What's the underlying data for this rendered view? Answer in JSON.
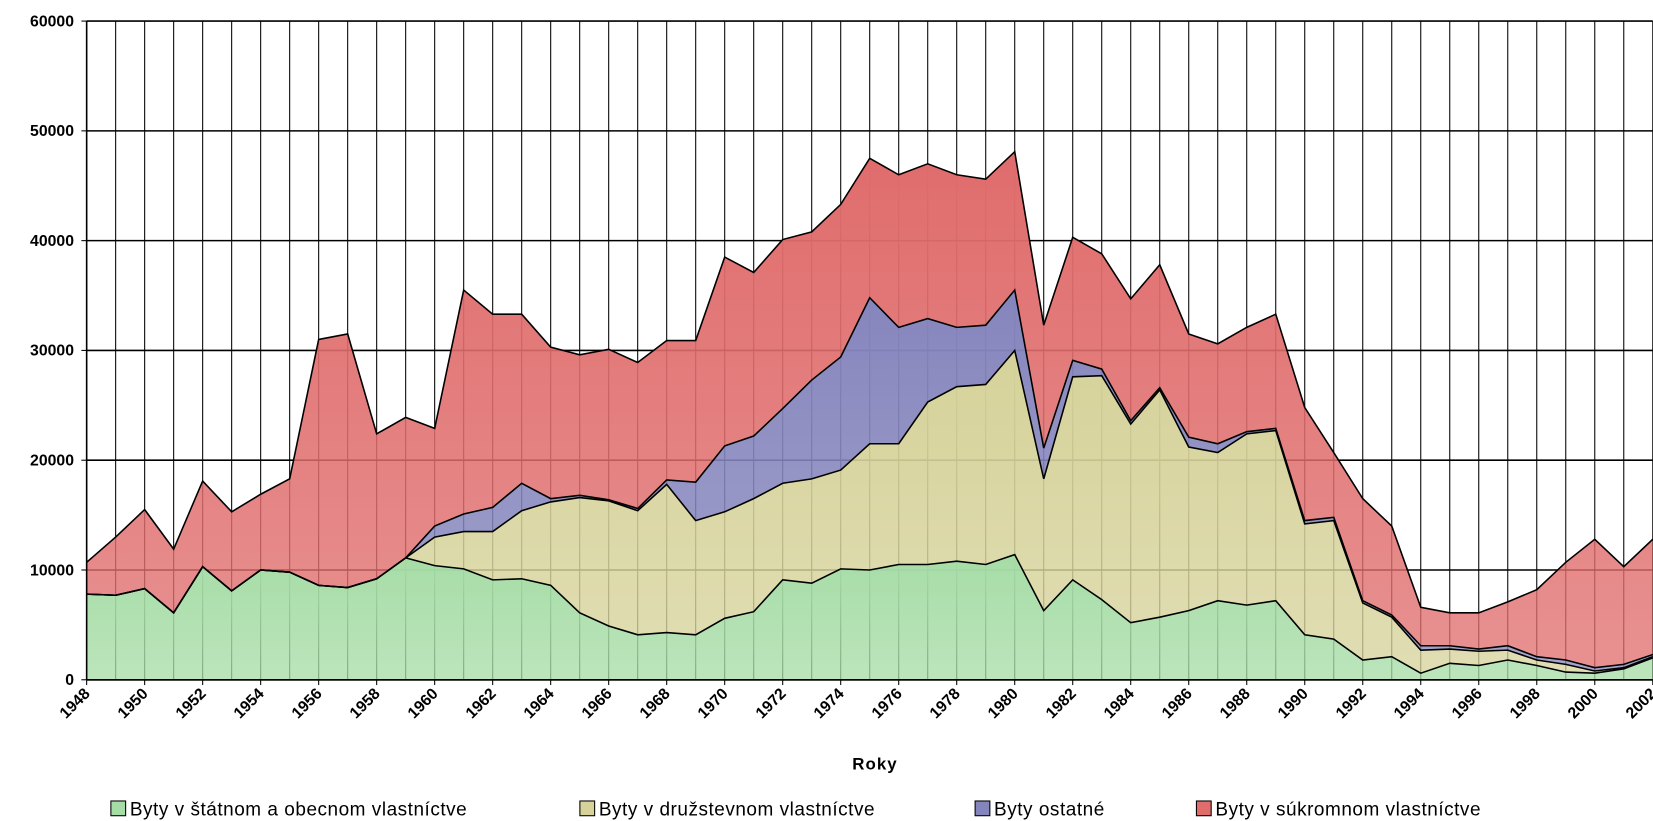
{
  "chart_data": {
    "type": "stacked_area",
    "x_label": "Roky",
    "x": [
      1948,
      1949,
      1950,
      1951,
      1952,
      1953,
      1954,
      1955,
      1956,
      1957,
      1958,
      1959,
      1960,
      1961,
      1962,
      1963,
      1964,
      1965,
      1966,
      1967,
      1968,
      1969,
      1970,
      1971,
      1972,
      1973,
      1974,
      1975,
      1976,
      1977,
      1978,
      1979,
      1980,
      1981,
      1982,
      1983,
      1984,
      1985,
      1986,
      1987,
      1988,
      1989,
      1990,
      1991,
      1992,
      1993,
      1994,
      1995,
      1996,
      1997,
      1998,
      1999,
      2000,
      2001,
      2002
    ],
    "xlim": [
      1948,
      2002
    ],
    "xticks": [
      1948,
      1950,
      1952,
      1954,
      1956,
      1958,
      1960,
      1962,
      1964,
      1966,
      1968,
      1970,
      1972,
      1974,
      1976,
      1978,
      1980,
      1982,
      1984,
      1986,
      1988,
      1990,
      1992,
      1994,
      1996,
      1998,
      2000,
      2002
    ],
    "ylim": [
      0,
      60000
    ],
    "yticks": [
      0,
      10000,
      20000,
      30000,
      40000,
      50000,
      60000
    ],
    "grid": true,
    "legend": "bottom",
    "series": [
      {
        "name": "Byty v štátnom a obecnom vlastníctve",
        "color": "#a6dca6",
        "values": [
          7800,
          7700,
          8300,
          6100,
          10300,
          8100,
          10000,
          9800,
          8600,
          8400,
          9200,
          11100,
          10400,
          10100,
          9100,
          9200,
          8600,
          6100,
          4900,
          4100,
          4300,
          4100,
          5600,
          6200,
          9100,
          8800,
          10100,
          10000,
          10500,
          10500,
          10800,
          10500,
          11400,
          6300,
          9100,
          7300,
          5200,
          5700,
          6300,
          7200,
          6800,
          7200,
          4100,
          3700,
          1800,
          2100,
          600,
          1500,
          1300,
          1800,
          1300,
          700,
          600,
          1000,
          2000
        ]
      },
      {
        "name": "Byty v družstevnom vlastníctve",
        "color": "#d6d29a",
        "values": [
          0,
          0,
          0,
          0,
          0,
          0,
          0,
          0,
          0,
          0,
          0,
          0,
          2600,
          3400,
          4400,
          6200,
          7600,
          10500,
          11400,
          11300,
          13500,
          10400,
          9700,
          10300,
          8800,
          9500,
          9000,
          11500,
          11000,
          14800,
          15900,
          16400,
          18600,
          12000,
          18500,
          20400,
          18100,
          20700,
          14900,
          13500,
          15600,
          15500,
          10100,
          10800,
          5200,
          3600,
          2100,
          1300,
          1300,
          900,
          500,
          700,
          200,
          100,
          100
        ]
      },
      {
        "name": "Byty ostatné",
        "color": "#8585bd",
        "values": [
          0,
          0,
          0,
          0,
          0,
          0,
          0,
          0,
          0,
          0,
          0,
          0,
          1000,
          1600,
          2200,
          2500,
          300,
          200,
          100,
          200,
          400,
          3500,
          6000,
          5700,
          6800,
          9000,
          10300,
          13300,
          10600,
          7600,
          5400,
          5400,
          5500,
          2800,
          1500,
          600,
          300,
          200,
          900,
          800,
          200,
          200,
          300,
          300,
          200,
          200,
          400,
          300,
          200,
          400,
          300,
          400,
          300,
          300,
          200
        ]
      },
      {
        "name": "Byty v súkromnom vlastníctve",
        "color": "#e06c6c",
        "values": [
          2900,
          5300,
          7200,
          5800,
          7800,
          7200,
          6900,
          8500,
          22400,
          23100,
          13200,
          12800,
          8900,
          20400,
          17600,
          15400,
          13800,
          12800,
          13700,
          13300,
          12700,
          12900,
          17200,
          14900,
          15400,
          13500,
          13900,
          12700,
          13900,
          14100,
          13900,
          13300,
          12600,
          11200,
          11200,
          10500,
          11100,
          11200,
          9400,
          9100,
          9500,
          10400,
          10300,
          5900,
          9300,
          8100,
          3500,
          3000,
          3300,
          4000,
          6100,
          8900,
          11700,
          8900,
          10500
        ]
      }
    ]
  }
}
